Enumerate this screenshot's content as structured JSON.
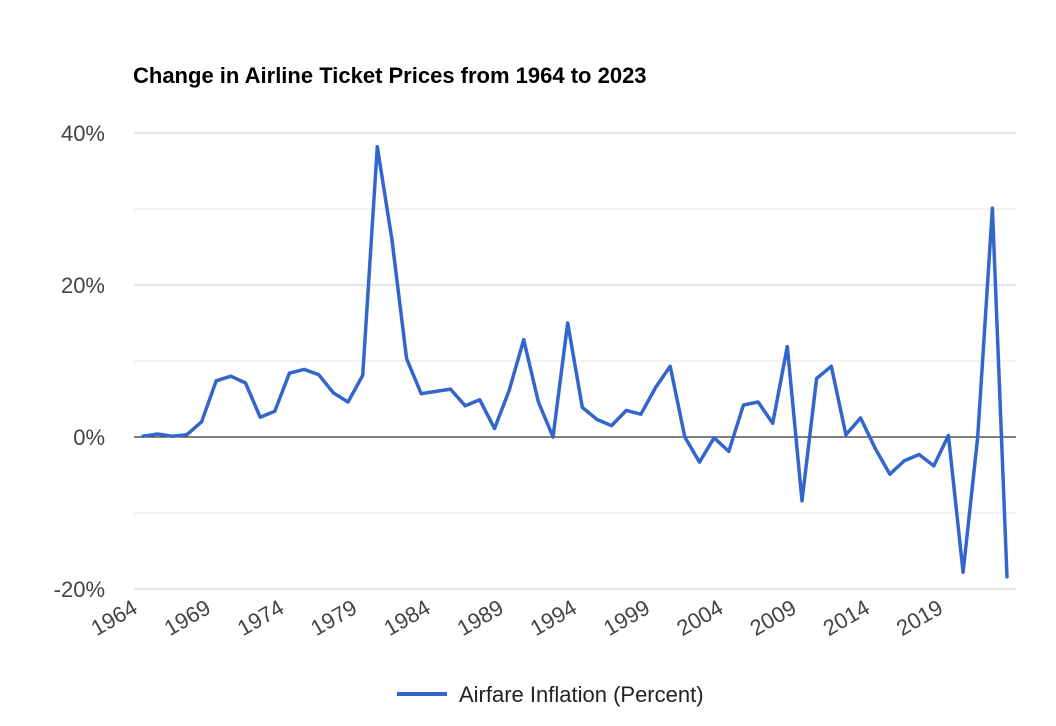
{
  "chart_data": {
    "type": "line",
    "title": "Change in Airline Ticket Prices from 1964 to 2023",
    "xlabel": "",
    "ylabel": "",
    "y_unit": "%",
    "ylim": [
      -20,
      40
    ],
    "y_ticks": [
      -20,
      0,
      20,
      40
    ],
    "y_tick_labels": [
      "-20%",
      "0%",
      "20%",
      "40%"
    ],
    "x_ticks": [
      1964,
      1969,
      1974,
      1979,
      1984,
      1989,
      1994,
      1999,
      2004,
      2009,
      2014,
      2019
    ],
    "x_tick_labels": [
      "1964",
      "1969",
      "1974",
      "1979",
      "1984",
      "1989",
      "1994",
      "1999",
      "2004",
      "2009",
      "2014",
      "2019"
    ],
    "grid": true,
    "legend": "bottom",
    "colors": {
      "series": "#3366cc",
      "zero_line": "#333333",
      "grid": "#cccccc"
    },
    "series": [
      {
        "name": "Airfare Inflation (Percent)",
        "x": [
          1964,
          1965,
          1966,
          1967,
          1968,
          1969,
          1970,
          1971,
          1972,
          1973,
          1974,
          1975,
          1976,
          1977,
          1978,
          1979,
          1980,
          1981,
          1982,
          1983,
          1984,
          1985,
          1986,
          1987,
          1988,
          1989,
          1990,
          1991,
          1992,
          1993,
          1994,
          1995,
          1996,
          1997,
          1998,
          1999,
          2000,
          2001,
          2002,
          2003,
          2004,
          2005,
          2006,
          2007,
          2008,
          2009,
          2010,
          2011,
          2012,
          2013,
          2014,
          2015,
          2016,
          2017,
          2018,
          2019,
          2020,
          2021,
          2022,
          2023
        ],
        "values": [
          0.1,
          0.4,
          0.1,
          0.3,
          2.0,
          7.4,
          8.0,
          7.1,
          2.6,
          3.4,
          8.4,
          8.9,
          8.2,
          5.8,
          4.6,
          8.1,
          38.2,
          26.0,
          10.3,
          5.7,
          6.0,
          6.3,
          4.1,
          4.9,
          1.1,
          6.1,
          12.8,
          4.6,
          0.0,
          15.0,
          3.9,
          2.3,
          1.5,
          3.5,
          3.0,
          6.5,
          9.3,
          0.0,
          -3.3,
          -0.1,
          -1.9,
          4.2,
          4.6,
          1.8,
          11.9,
          -8.4,
          7.7,
          9.3,
          0.3,
          2.5,
          -1.5,
          -4.9,
          -3.1,
          -2.3,
          -3.8,
          0.2,
          -17.8,
          0.0,
          30.1,
          -18.4
        ]
      }
    ]
  }
}
